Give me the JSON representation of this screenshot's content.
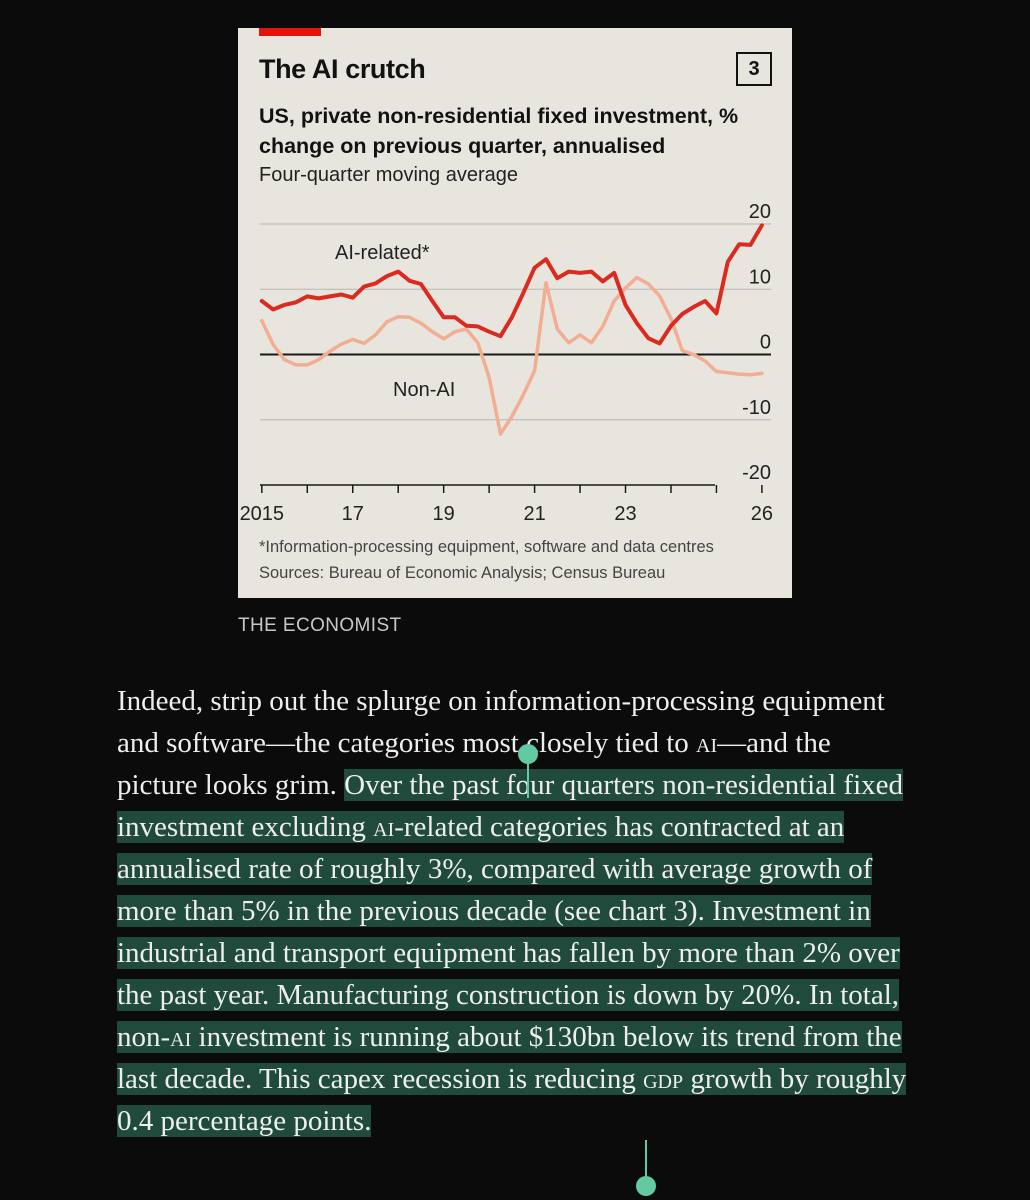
{
  "chart_card": {
    "title": "The AI crutch",
    "chart_number": "3",
    "subtitle": "US, private non-residential fixed investment, % change on previous quarter, annualised",
    "subnote": "Four-quarter moving average",
    "footnote": "*Information-processing equipment, software and data centres",
    "sources": "Sources: Bureau of Economic Analysis; Census Bureau",
    "credit": "THE ECONOMIST"
  },
  "chart_data": {
    "type": "line",
    "y_ticks": [
      "20",
      "10",
      "0",
      "-10",
      "-20"
    ],
    "x_ticks": [
      "2015",
      "17",
      "19",
      "21",
      "23",
      "26"
    ],
    "ylim": [
      -20,
      20
    ],
    "xlim": [
      2014.96,
      2026.2
    ],
    "grid": true,
    "colors": {
      "ai": "#db2a1f",
      "non_ai": "#f2ad93"
    },
    "series": [
      {
        "name": "AI-related*",
        "x": [
          2015.0,
          2015.25,
          2015.5,
          2015.75,
          2016.0,
          2016.25,
          2016.5,
          2016.75,
          2017.0,
          2017.25,
          2017.5,
          2017.75,
          2018.0,
          2018.25,
          2018.5,
          2018.75,
          2019.0,
          2019.25,
          2019.5,
          2019.75,
          2020.0,
          2020.25,
          2020.5,
          2020.75,
          2021.0,
          2021.25,
          2021.5,
          2021.75,
          2022.0,
          2022.25,
          2022.5,
          2022.75,
          2023.0,
          2023.25,
          2023.5,
          2023.75,
          2024.0,
          2024.25,
          2024.5,
          2024.75,
          2025.0,
          2025.25,
          2025.5,
          2025.75,
          2026.0
        ],
        "values": [
          8.2,
          6.9,
          7.6,
          8.0,
          8.9,
          8.6,
          8.9,
          9.2,
          8.7,
          10.4,
          10.9,
          12.0,
          12.7,
          11.3,
          10.8,
          8.2,
          5.7,
          5.7,
          4.4,
          4.3,
          3.5,
          2.8,
          5.7,
          9.4,
          13.3,
          14.6,
          11.7,
          12.7,
          12.5,
          12.7,
          11.2,
          12.5,
          7.6,
          4.8,
          2.5,
          1.7,
          4.4,
          6.2,
          7.3,
          8.2,
          6.3,
          14.2,
          16.9,
          16.8,
          19.8
        ]
      },
      {
        "name": "Non-AI",
        "x": [
          2015.0,
          2015.25,
          2015.5,
          2015.75,
          2016.0,
          2016.25,
          2016.5,
          2016.75,
          2017.0,
          2017.25,
          2017.5,
          2017.75,
          2018.0,
          2018.25,
          2018.5,
          2018.75,
          2019.0,
          2019.25,
          2019.5,
          2019.75,
          2020.0,
          2020.25,
          2020.5,
          2020.75,
          2021.0,
          2021.25,
          2021.5,
          2021.75,
          2022.0,
          2022.25,
          2022.5,
          2022.75,
          2023.0,
          2023.25,
          2023.5,
          2023.75,
          2024.0,
          2024.25,
          2024.5,
          2024.75,
          2025.0,
          2025.25,
          2025.5,
          2025.75,
          2026.0
        ],
        "values": [
          5.2,
          1.5,
          -0.8,
          -1.6,
          -1.6,
          -0.8,
          0.5,
          1.6,
          2.3,
          1.7,
          3.0,
          5.0,
          5.8,
          5.7,
          4.8,
          3.5,
          2.4,
          3.5,
          3.9,
          1.8,
          -3.5,
          -12.2,
          -9.5,
          -6.2,
          -2.5,
          11.0,
          3.9,
          1.8,
          3.0,
          1.8,
          4.3,
          8.2,
          10.2,
          11.8,
          10.8,
          9.0,
          5.5,
          0.6,
          0.0,
          -1.0,
          -2.6,
          -2.8,
          -3.0,
          -3.1,
          -2.9
        ]
      }
    ]
  },
  "article": {
    "pre": "Indeed, strip out the splurge on information-processing equipment and software—the categories most closely tied to ",
    "pre_sc": "ai",
    "pre_end": "—and the picture looks grim. ",
    "h1": "Over the past four quarters non-residential fixed investment excluding ",
    "h_sc1": "ai",
    "h2": "-related categories has contracted at an annualised rate of roughly 3%, compared with average growth of more than 5% in the previous decade (see chart 3). Investment in industrial and transport equipment has fallen by more than 2% over the past year. Manufacturing construction is down by 20%. In total, non-",
    "h_sc2": "ai",
    "h3": " investment is running about $130bn below its trend from the last decade. This capex recession is reducing ",
    "h_sc3": "gdp",
    "h4": " growth by roughly 0.4 percentage points."
  }
}
